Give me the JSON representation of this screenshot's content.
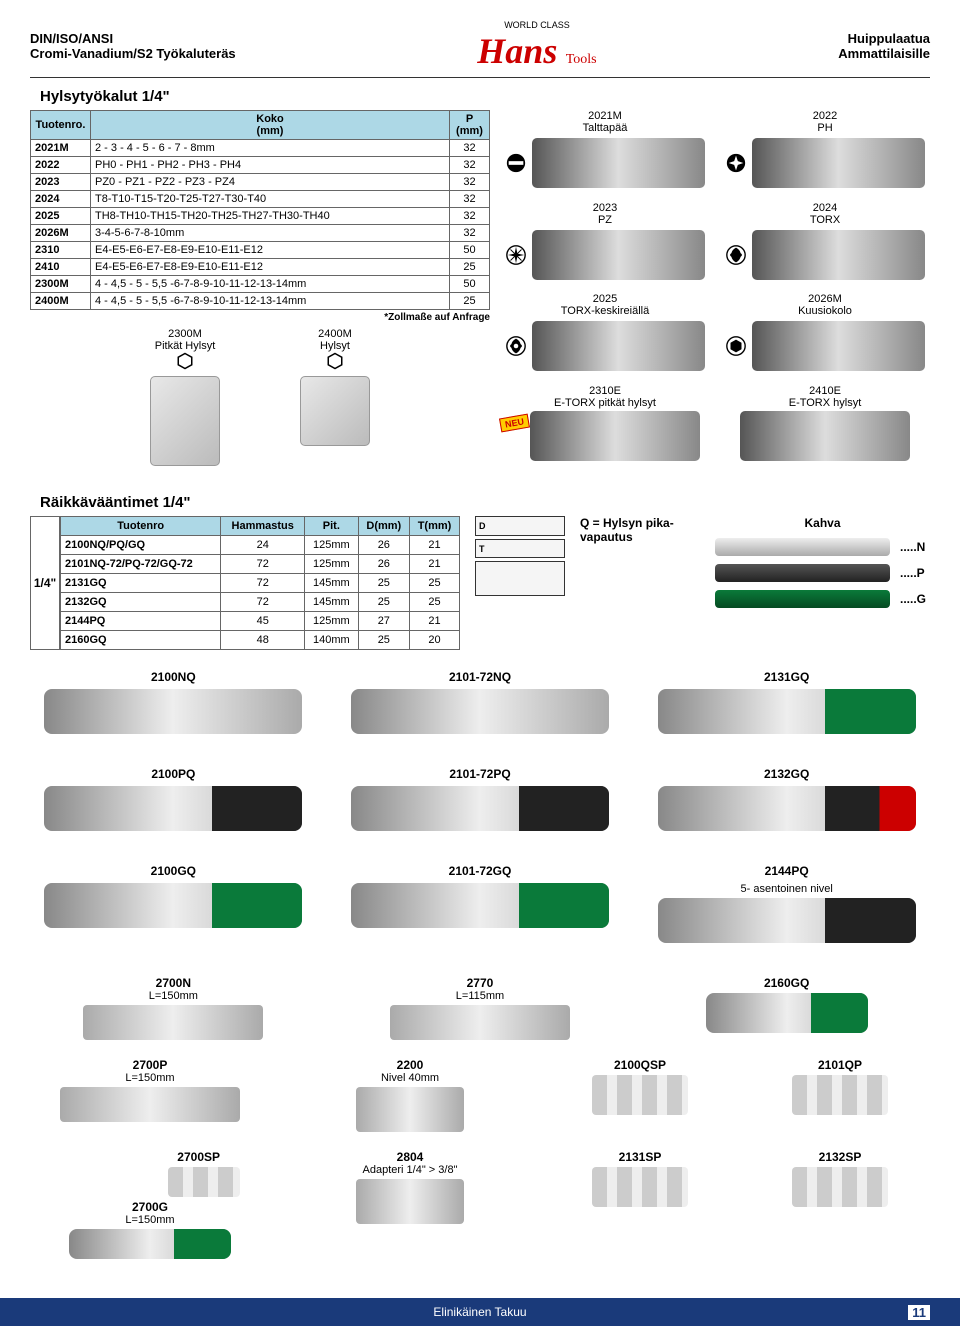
{
  "header": {
    "left_line1": "DIN/ISO/ANSI",
    "left_line2": "Cromi-Vanadium/S2 Työkaluteräs",
    "logo_top": "WORLD CLASS",
    "logo_main": "Hans",
    "logo_sub": "Tools",
    "right_line1": "Huippulaatua",
    "right_line2": "Ammattilaisille"
  },
  "section1_title": "Hylsytyökalut 1/4\"",
  "table1": {
    "headers": [
      "Tuotenro.",
      "Koko\n(mm)",
      "P\n(mm)"
    ],
    "rows": [
      [
        "2021M",
        "2 - 3 - 4 - 5 - 6 - 7 - 8mm",
        "32"
      ],
      [
        "2022",
        "PH0 - PH1 - PH2 - PH3 - PH4",
        "32"
      ],
      [
        "2023",
        "PZ0 - PZ1 - PZ2 - PZ3 - PZ4",
        "32"
      ],
      [
        "2024",
        "T8-T10-T15-T20-T25-T27-T30-T40",
        "32"
      ],
      [
        "2025",
        "TH8-TH10-TH15-TH20-TH25-TH27-TH30-TH40",
        "32"
      ],
      [
        "2026M",
        "3-4-5-6-7-8-10mm",
        "32"
      ],
      [
        "2310",
        "E4-E5-E6-E7-E8-E9-E10-E11-E12",
        "50"
      ],
      [
        "2410",
        "E4-E5-E6-E7-E8-E9-E10-E11-E12",
        "25"
      ],
      [
        "2300M",
        "4 - 4,5 - 5 - 5,5 -6-7-8-9-10-11-12-13-14mm",
        "50"
      ],
      [
        "2400M",
        "4 - 4,5 - 5 - 5,5 -6-7-8-9-10-11-12-13-14mm",
        "25"
      ]
    ],
    "note": "*Zollmaße auf Anfrage"
  },
  "sockets_below": {
    "s1": {
      "code": "2300M",
      "label": "Pitkät Hylsyt"
    },
    "s2": {
      "code": "2400M",
      "label": "Hylsyt"
    }
  },
  "bits": {
    "b1": {
      "code": "2021M",
      "label": "Talttapää"
    },
    "b2": {
      "code": "2022",
      "label": "PH"
    },
    "b3": {
      "code": "2023",
      "label": "PZ"
    },
    "b4": {
      "code": "2024",
      "label": "TORX"
    },
    "b5": {
      "code": "2025",
      "label": "TORX-keskireiällä"
    },
    "b6": {
      "code": "2026M",
      "label": "Kuusiokolo"
    },
    "b7": {
      "code": "2310E",
      "label": "E-TORX pitkät hylsyt",
      "badge": "NEU"
    },
    "b8": {
      "code": "2410E",
      "label": "E-TORX hylsyt"
    }
  },
  "section2_title": "Räikkävääntimet 1/4\"",
  "table2": {
    "quarter": "1/4\"",
    "headers": [
      "Tuotenro",
      "Hammastus",
      "Pit.",
      "D(mm)",
      "T(mm)"
    ],
    "rows": [
      [
        "2100NQ/PQ/GQ",
        "24",
        "125mm",
        "26",
        "21"
      ],
      [
        "2101NQ-72/PQ-72/GQ-72",
        "72",
        "125mm",
        "26",
        "21"
      ],
      [
        "2131GQ",
        "72",
        "145mm",
        "25",
        "25"
      ],
      [
        "2132GQ",
        "72",
        "145mm",
        "25",
        "25"
      ],
      [
        "2144PQ",
        "45",
        "125mm",
        "27",
        "21"
      ],
      [
        "2160GQ",
        "48",
        "140mm",
        "25",
        "20"
      ]
    ]
  },
  "diagram": {
    "d": "D",
    "t": "T"
  },
  "q_note": "Q = Hylsyn pika-vapautus",
  "kahva": {
    "title": "Kahva",
    "n": ".....N",
    "p": ".....P",
    "g": ".....G"
  },
  "ratchets": {
    "r1": "2100NQ",
    "r2": "2101-72NQ",
    "r3": "2131GQ",
    "r4": "2100PQ",
    "r5": "2101-72PQ",
    "r6": "2132GQ",
    "r7": "2100GQ",
    "r8": "2101-72GQ",
    "r9": "2144PQ",
    "r9_sub": "5- asentoinen nivel"
  },
  "accessories": {
    "a1": {
      "code": "2700N",
      "sub": "L=150mm"
    },
    "a2": {
      "code": "2770",
      "sub": "L=115mm"
    },
    "a3": {
      "code": "2160GQ",
      "sub": ""
    },
    "a4": {
      "code": "2700P",
      "sub": "L=150mm"
    },
    "a5": {
      "code": "2200",
      "sub": "Nivel 40mm"
    },
    "a6": {
      "code": "2100QSP",
      "sub": ""
    },
    "a7": {
      "code": "2101QP",
      "sub": ""
    },
    "a8": {
      "code": "2700SP",
      "sub": ""
    },
    "a9": {
      "code": "2700G",
      "sub": "L=150mm"
    },
    "a10": {
      "code": "2804",
      "sub": "Adapteri 1/4\" > 3/8\""
    },
    "a11": {
      "code": "2131SP",
      "sub": ""
    },
    "a12": {
      "code": "2132SP",
      "sub": ""
    }
  },
  "footer": {
    "text": "Elinikäinen Takuu",
    "page": "11"
  },
  "colors": {
    "header_blue": "#add8e6",
    "brand_red": "#cc0000",
    "footer_blue": "#1a3a7a",
    "green_handle": "#0a7a3a"
  }
}
